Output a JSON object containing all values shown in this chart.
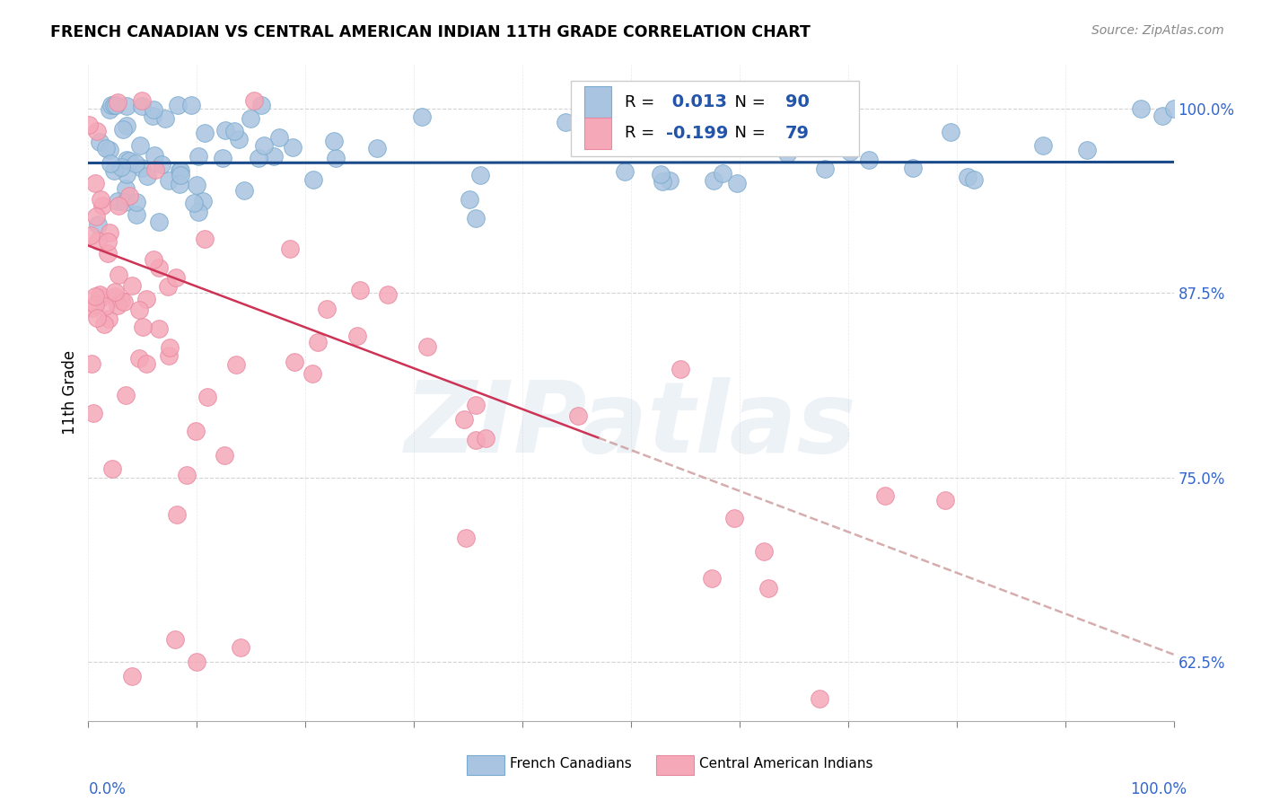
{
  "title": "FRENCH CANADIAN VS CENTRAL AMERICAN INDIAN 11TH GRADE CORRELATION CHART",
  "source": "Source: ZipAtlas.com",
  "ylabel": "11th Grade",
  "ytick_vals": [
    0.625,
    0.75,
    0.875,
    1.0
  ],
  "ytick_labels": [
    "62.5%",
    "75.0%",
    "87.5%",
    "100.0%"
  ],
  "xlim": [
    0.0,
    1.0
  ],
  "ylim": [
    0.585,
    1.03
  ],
  "blue_color": "#A8C4E0",
  "pink_color": "#F5A8B8",
  "blue_edge": "#7AAACE",
  "pink_edge": "#E888A0",
  "trend_blue": "#1A4A8A",
  "trend_pink": "#CC3355",
  "trend_pink_dash": "#CC9999",
  "R_blue": 0.013,
  "N_blue": 90,
  "R_pink": -0.199,
  "N_pink": 79,
  "legend_label_blue": "French Canadians",
  "legend_label_pink": "Central American Indians",
  "watermark": "ZIPatlas",
  "legend_text_color": "#2255AA",
  "legend_R_label_color": "#222222",
  "xlabel_color": "#3366CC",
  "ytick_color": "#3366CC"
}
